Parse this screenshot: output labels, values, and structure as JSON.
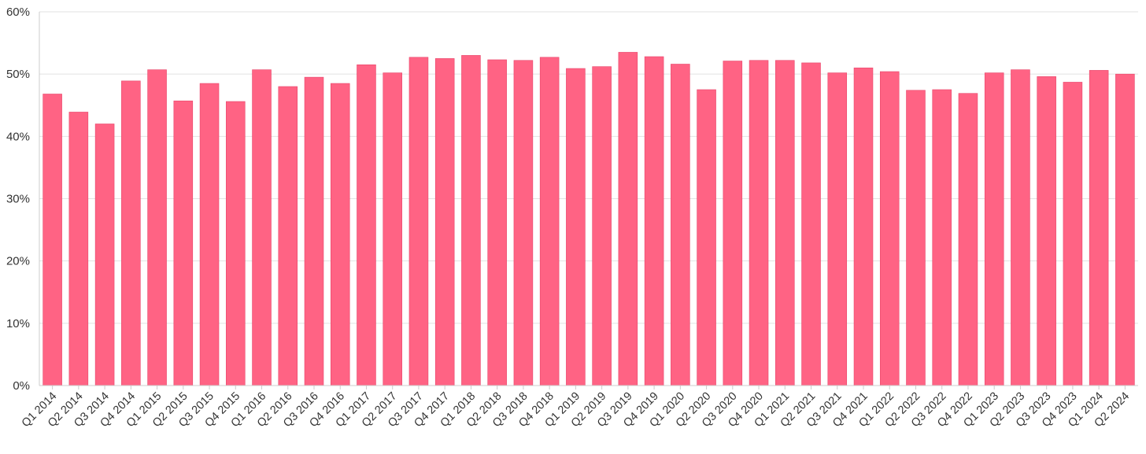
{
  "chart_data": {
    "type": "bar",
    "title": "",
    "xlabel": "",
    "ylabel": "",
    "ylim": [
      0,
      60
    ],
    "y_ticks": [
      "0%",
      "10%",
      "20%",
      "30%",
      "40%",
      "50%",
      "60%"
    ],
    "y_tick_values": [
      0,
      10,
      20,
      30,
      40,
      50,
      60
    ],
    "grid": true,
    "legend": "none",
    "bar_color": "#ff6384",
    "categories": [
      "Q1 2014",
      "Q2 2014",
      "Q3 2014",
      "Q4 2014",
      "Q1 2015",
      "Q2 2015",
      "Q3 2015",
      "Q4 2015",
      "Q1 2016",
      "Q2 2016",
      "Q3 2016",
      "Q4 2016",
      "Q1 2017",
      "Q2 2017",
      "Q3 2017",
      "Q4 2017",
      "Q1 2018",
      "Q2 2018",
      "Q3 2018",
      "Q4 2018",
      "Q1 2019",
      "Q2 2019",
      "Q3 2019",
      "Q4 2019",
      "Q1 2020",
      "Q2 2020",
      "Q3 2020",
      "Q4 2020",
      "Q1 2021",
      "Q2 2021",
      "Q3 2021",
      "Q4 2021",
      "Q1 2022",
      "Q2 2022",
      "Q3 2022",
      "Q4 2022",
      "Q1 2023",
      "Q2 2023",
      "Q3 2023",
      "Q4 2023",
      "Q1 2024",
      "Q2 2024"
    ],
    "series": [
      {
        "values": [
          46.8,
          43.9,
          42.0,
          48.9,
          50.7,
          45.7,
          48.5,
          45.6,
          50.7,
          48.0,
          49.5,
          48.5,
          51.5,
          50.2,
          52.7,
          52.5,
          53.0,
          52.3,
          52.2,
          52.7,
          50.9,
          51.2,
          53.5,
          52.8,
          51.6,
          47.5,
          52.1,
          52.2,
          52.2,
          51.8,
          50.2,
          51.0,
          50.4,
          47.4,
          47.5,
          46.9,
          50.2,
          50.7,
          49.6,
          48.7,
          50.6,
          50.0
        ]
      }
    ]
  }
}
